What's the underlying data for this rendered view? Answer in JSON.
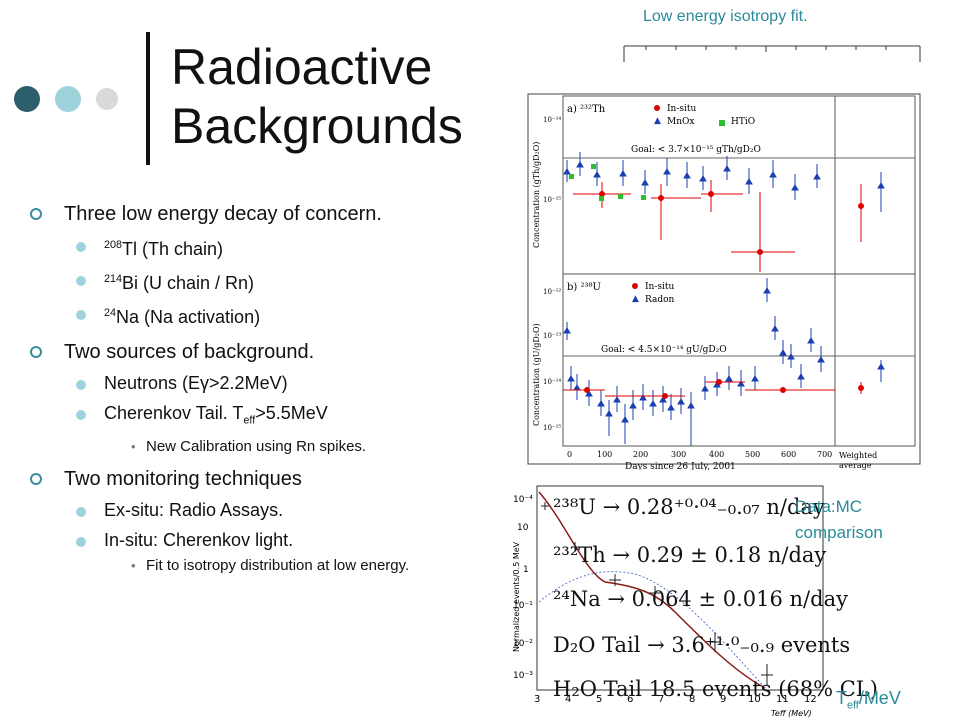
{
  "slide": {
    "title_line1": "Radioactive",
    "title_line2": "Backgrounds",
    "top_caption": "Low energy isotropy fit.",
    "accent_colors": {
      "dot1": "#2c5f6b",
      "dot2": "#9fd3dc",
      "dot3": "#d9d9d9",
      "caption": "#2a8a9a"
    }
  },
  "bullets": {
    "b1": "Three low energy decay of concern.",
    "b1_items": [
      {
        "sup": "208",
        "text": "Tl (Th chain)"
      },
      {
        "sup": "214",
        "text": "Bi (U chain / Rn)"
      },
      {
        "sup": "24",
        "text": "Na (Na activation)"
      }
    ],
    "b2": "Two sources of background.",
    "b2_item1": "Neutrons (Eγ>2.2MeV)",
    "b2_item2_pre": "Cherenkov Tail. T",
    "b2_item2_sub": "eff",
    "b2_item2_post": ">5.5MeV",
    "b2_sub1": "New Calibration using Rn spikes.",
    "b3": "Two monitoring techniques",
    "b3_item1": "Ex-situ: Radio Assays.",
    "b3_item2": "In-situ: Cherenkov light.",
    "b3_sub1": "Fit to isotropy distribution at low energy."
  },
  "figure": {
    "panel_a_label": "a) ²³²Th",
    "panel_b_label": "b) ²³⁸U",
    "legend_a": [
      "In-situ",
      "MnOx",
      "HTiO"
    ],
    "legend_b": [
      "In-situ",
      "Radon"
    ],
    "goal_a": "Goal: < 3.7×10⁻¹⁵ gTh/gD₂O",
    "goal_b": "Goal: < 4.5×10⁻¹⁴ gU/gD₂O",
    "ylabel_a": "Concentration (gTh/gD₂O)",
    "ylabel_b": "Concentration (gU/gD₂O)",
    "xlabel": "Days since 26 July, 2001",
    "weighted_label_1": "Weighted",
    "weighted_label_2": "average",
    "x_ticks": [
      "0",
      "100",
      "200",
      "300",
      "400",
      "500",
      "600",
      "700"
    ],
    "a_ticks": [
      "10⁻¹⁴",
      "10⁻¹⁵"
    ],
    "b_ticks": [
      "10⁻¹²",
      "10⁻¹³",
      "10⁻¹⁴",
      "10⁻¹⁵"
    ]
  },
  "lowplot": {
    "ylabel": "Normalized events/0.5 MeV",
    "caption_line1": "Data:MC",
    "caption_line2": "comparison",
    "y_ticks": [
      "10",
      "1",
      "10⁻¹",
      "10⁻²",
      "10⁻³",
      "10⁻⁴"
    ],
    "x_ticks": [
      "3",
      "4",
      "5",
      "6",
      "7",
      "8",
      "9",
      "10",
      "11",
      "12"
    ],
    "x_axis_label": "Teff (MeV)",
    "teff_pre": "T",
    "teff_sub": "eff",
    "teff_post": "/MeV",
    "eq1": "²³⁸U → 0.28⁺⁰·⁰⁴₋₀.₀₇ n/day",
    "eq2": "²³²Th → 0.29 ± 0.18 n/day",
    "eq3": "²⁴Na → 0.064 ± 0.016 n/day",
    "eq4": "D₂O Tail → 3.6⁺¹·⁰₋₀.₉ events",
    "eq5": "H₂O Tail 18.5 events (68% CL)"
  }
}
